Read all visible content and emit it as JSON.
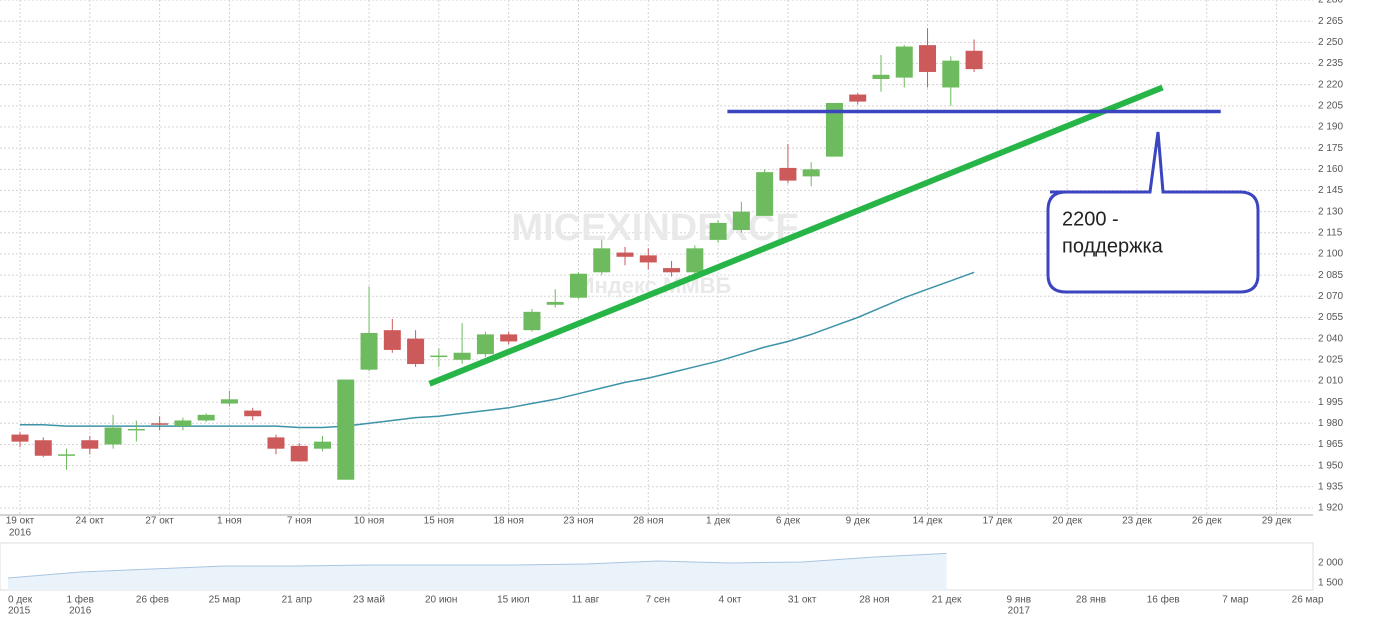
{
  "chart_data": [
    {
      "type": "candlestick",
      "categories": [
        "19 окт",
        null,
        null,
        "24 окт",
        null,
        null,
        "27 окт",
        null,
        null,
        "1 ноя",
        null,
        null,
        "7 ноя",
        null,
        null,
        "10 ноя",
        null,
        null,
        "15 ноя",
        null,
        null,
        "18 ноя",
        null,
        null,
        "23 ноя",
        null,
        null,
        "28 ноя",
        null,
        null,
        "1 дек",
        null,
        null,
        "6 дек",
        null,
        null,
        "9 дек",
        null,
        null,
        "14 дек",
        null,
        null,
        "17 дек",
        null,
        null,
        "20 дек",
        null,
        null,
        "23 дек",
        null,
        null,
        "26 дек",
        null,
        null,
        "29 дек"
      ],
      "year_labels": [
        {
          "index": 0,
          "label": "2016"
        }
      ],
      "open": [
        1972,
        1968,
        1958,
        1968,
        1965,
        1975,
        1980,
        1978,
        1982,
        1994,
        1989,
        1970,
        1964,
        1962,
        1940,
        2018,
        2046,
        2040,
        2027,
        2025,
        2029,
        2043,
        2046,
        2064,
        2069,
        2087,
        2101,
        2099,
        2090,
        2087,
        2110,
        2117,
        2127,
        2161,
        2155,
        2169,
        2213,
        2224,
        2225,
        2248,
        2218,
        2244,
        null,
        null,
        null,
        null,
        null,
        null,
        null,
        null,
        null,
        null,
        null,
        null,
        null
      ],
      "high": [
        1974,
        1970,
        1962,
        1971,
        1986,
        1982,
        1985,
        1984,
        1987,
        2003,
        1991,
        1972,
        1966,
        1971,
        2011,
        2077,
        2054,
        2046,
        2033,
        2051,
        2045,
        2045,
        2061,
        2075,
        2087,
        2110,
        2105,
        2104,
        2095,
        2106,
        2124,
        2137,
        2160,
        2178,
        2165,
        2207,
        2214,
        2241,
        2248,
        2260,
        2240,
        2252,
        null,
        null,
        null,
        null,
        null,
        null,
        null,
        null,
        null,
        null,
        null,
        null,
        null
      ],
      "low": [
        1963,
        1956,
        1947,
        1958,
        1962,
        1967,
        1975,
        1975,
        1981,
        1992,
        1982,
        1958,
        1953,
        1960,
        1940,
        2017,
        2030,
        2020,
        2020,
        2022,
        2027,
        2036,
        2045,
        2062,
        2068,
        2085,
        2092,
        2089,
        2084,
        2085,
        2108,
        2115,
        2127,
        2150,
        2148,
        2169,
        2206,
        2215,
        2218,
        2218,
        2205,
        2229,
        null,
        null,
        null,
        null,
        null,
        null,
        null,
        null,
        null,
        null,
        null,
        null,
        null
      ],
      "close": [
        1967,
        1957,
        1958,
        1962,
        1977,
        1976,
        1979,
        1982,
        1986,
        1997,
        1985,
        1962,
        1953,
        1967,
        2011,
        2044,
        2032,
        2022,
        2028,
        2030,
        2043,
        2038,
        2059,
        2066,
        2086,
        2104,
        2098,
        2094,
        2087,
        2104,
        2122,
        2130,
        2158,
        2152,
        2160,
        2207,
        2208,
        2227,
        2247,
        2229,
        2237,
        2231,
        null,
        null,
        null,
        null,
        null,
        null,
        null,
        null,
        null,
        null,
        null,
        null,
        null
      ],
      "up_color": "#6dbb5e",
      "down_color": "#cc5a5a",
      "moving_average": {
        "color": "#3d93a8",
        "values": [
          1979,
          1979,
          1978,
          1978,
          1978,
          1978,
          1978,
          1978,
          1978,
          1978,
          1978,
          1978,
          1977,
          1977,
          1978,
          1980,
          1982,
          1984,
          1985,
          1987,
          1989,
          1991,
          1994,
          1997,
          2001,
          2005,
          2009,
          2012,
          2016,
          2020,
          2024,
          2029,
          2034,
          2038,
          2043,
          2049,
          2055,
          2062,
          2069,
          2075,
          2081,
          2087,
          null,
          null,
          null,
          null,
          null,
          null,
          null,
          null,
          null,
          null,
          null,
          null,
          null
        ]
      },
      "ylim": [
        1915,
        2280
      ],
      "yticks": [
        {
          "value": 1920,
          "label": "1 920"
        },
        {
          "value": 1935,
          "label": "1 935"
        },
        {
          "value": 1950,
          "label": "1 950"
        },
        {
          "value": 1965,
          "label": "1 965"
        },
        {
          "value": 1980,
          "label": "1 980"
        },
        {
          "value": 1995,
          "label": "1 995"
        },
        {
          "value": 2010,
          "label": "2 010"
        },
        {
          "value": 2025,
          "label": "2 025"
        },
        {
          "value": 2040,
          "label": "2 040"
        },
        {
          "value": 2055,
          "label": "2 055"
        },
        {
          "value": 2070,
          "label": "2 070"
        },
        {
          "value": 2085,
          "label": "2 085"
        },
        {
          "value": 2100,
          "label": "2 100"
        },
        {
          "value": 2115,
          "label": "2 115"
        },
        {
          "value": 2130,
          "label": "2 130"
        },
        {
          "value": 2145,
          "label": "2 145"
        },
        {
          "value": 2160,
          "label": "2 160"
        },
        {
          "value": 2175,
          "label": "2 175"
        },
        {
          "value": 2190,
          "label": "2 190"
        },
        {
          "value": 2205,
          "label": "2 205"
        },
        {
          "value": 2220,
          "label": "2 220"
        },
        {
          "value": 2235,
          "label": "2 235"
        },
        {
          "value": 2250,
          "label": "2 250"
        },
        {
          "value": 2265,
          "label": "2 265"
        },
        {
          "value": 2280,
          "label": "2 280"
        }
      ],
      "grid": true,
      "watermark": [
        "MICEXINDEXCF",
        "Индекс ММВБ"
      ],
      "trend_line": {
        "color": "#27b548",
        "x": [
          17.6,
          49.1
        ],
        "y": [
          2008,
          2218
        ]
      },
      "support_line": {
        "color": "#3c45c0",
        "x": [
          30.4,
          51.6
        ],
        "y": [
          2201,
          2201
        ]
      },
      "callout": {
        "lines": [
          "2200 -",
          "поддержка"
        ],
        "color": "#3c45c0"
      }
    },
    {
      "type": "area",
      "categories": [
        "0 дек",
        "1 фев",
        "26 фев",
        "25 мар",
        "21 апр",
        "23 май",
        "20 июн",
        "15 июл",
        "11 авг",
        "7 сен",
        "4 окт",
        "31 окт",
        "28 ноя",
        "21 дек",
        "9 янв",
        "28 янв",
        "16 фев",
        "7 мар",
        "26 мар"
      ],
      "year_labels": [
        {
          "index": 0,
          "label": "2015"
        },
        {
          "index": 1,
          "label": "2016"
        },
        {
          "index": 14,
          "label": "2017"
        }
      ],
      "values": [
        1625,
        1775,
        1850,
        1925,
        1925,
        1950,
        1950,
        1950,
        1975,
        2050,
        2000,
        2025,
        2150,
        2240,
        null,
        null,
        null,
        null,
        null
      ],
      "color": "#a9c6e0",
      "ylim": [
        1325,
        2450
      ],
      "yticks": [
        {
          "value": 2000,
          "label": "2 000"
        },
        {
          "value": 1500,
          "label": "1 500"
        }
      ]
    }
  ]
}
